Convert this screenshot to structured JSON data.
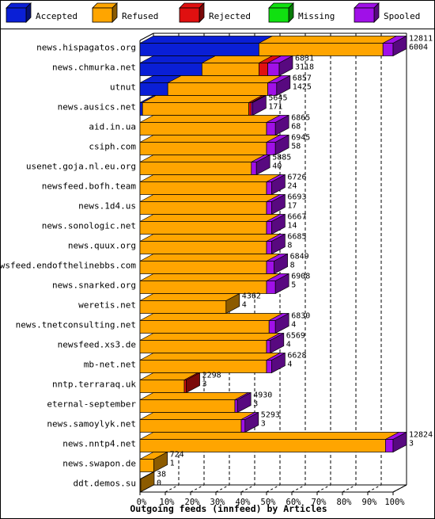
{
  "chart_data": {
    "type": "bar",
    "orientation": "horizontal",
    "stacked": true,
    "title": "Outgoing feeds (innfeed) by Articles",
    "xlabel": "Outgoing feeds (innfeed) by Articles",
    "ylabel": "",
    "xlim": [
      0,
      100
    ],
    "x_ticks": [
      "0%",
      "10%",
      "20%",
      "30%",
      "40%",
      "50%",
      "60%",
      "70%",
      "80%",
      "90%",
      "100%"
    ],
    "legend_position": "top",
    "series": [
      {
        "name": "Accepted",
        "color": "#0a1fd6"
      },
      {
        "name": "Refused",
        "color": "#ffa500"
      },
      {
        "name": "Rejected",
        "color": "#e01010"
      },
      {
        "name": "Missing",
        "color": "#10e010"
      },
      {
        "name": "Spooled",
        "color": "#a010e8"
      }
    ],
    "categories": [
      {
        "name": "news.hispagatos.org",
        "total": "12811",
        "second": "6004",
        "pct": [
          47,
          49,
          0,
          0,
          4
        ]
      },
      {
        "name": "news.chmurka.net",
        "total": "6831",
        "second": "3118",
        "pct": [
          24.5,
          22.5,
          3.5,
          0,
          4.5
        ]
      },
      {
        "name": "utnut",
        "total": "6857",
        "second": "1425",
        "pct": [
          11,
          39.5,
          0,
          0,
          3.5
        ]
      },
      {
        "name": "news.ausics.net",
        "total": "5645",
        "second": "171",
        "pct": [
          1,
          42,
          1,
          0,
          0.5
        ]
      },
      {
        "name": "aid.in.ua",
        "total": "6865",
        "second": "68",
        "pct": [
          0,
          50,
          0,
          0,
          3.5
        ]
      },
      {
        "name": "csiph.com",
        "total": "6945",
        "second": "58",
        "pct": [
          0,
          50,
          0,
          0,
          3.5
        ]
      },
      {
        "name": "usenet.goja.nl.eu.org",
        "total": "5885",
        "second": "40",
        "pct": [
          0,
          44,
          0,
          0,
          2
        ]
      },
      {
        "name": "newsfeed.bofh.team",
        "total": "6726",
        "second": "24",
        "pct": [
          0,
          50,
          0,
          0,
          2
        ]
      },
      {
        "name": "news.1d4.us",
        "total": "6693",
        "second": "17",
        "pct": [
          0,
          50,
          0,
          0,
          2
        ]
      },
      {
        "name": "news.sonologic.net",
        "total": "6667",
        "second": "14",
        "pct": [
          0,
          50,
          0,
          0,
          2
        ]
      },
      {
        "name": "news.quux.org",
        "total": "6685",
        "second": "8",
        "pct": [
          0,
          50,
          0,
          0,
          2
        ]
      },
      {
        "name": "newsfeed.endofthelinebbs.com",
        "total": "6849",
        "second": "8",
        "pct": [
          0,
          50,
          0,
          0,
          3
        ]
      },
      {
        "name": "news.snarked.org",
        "total": "6908",
        "second": "5",
        "pct": [
          0,
          50,
          0,
          0,
          3.5
        ]
      },
      {
        "name": "weretis.net",
        "total": "4362",
        "second": "4",
        "pct": [
          0,
          34,
          0,
          0,
          0
        ]
      },
      {
        "name": "news.tnetconsulting.net",
        "total": "6830",
        "second": "4",
        "pct": [
          0,
          51,
          0,
          0,
          2.5
        ]
      },
      {
        "name": "newsfeed.xs3.de",
        "total": "6569",
        "second": "4",
        "pct": [
          0,
          50,
          0,
          0,
          1.5
        ]
      },
      {
        "name": "mb-net.net",
        "total": "6628",
        "second": "4",
        "pct": [
          0,
          50,
          0,
          0,
          2
        ]
      },
      {
        "name": "nntp.terraraq.uk",
        "total": "2298",
        "second": "3",
        "pct": [
          0,
          17.5,
          0.8,
          0,
          0
        ]
      },
      {
        "name": "eternal-september",
        "total": "4930",
        "second": "3",
        "pct": [
          0,
          37.5,
          0,
          0,
          1
        ]
      },
      {
        "name": "news.samoylyk.net",
        "total": "5293",
        "second": "3",
        "pct": [
          0,
          40,
          0,
          0,
          1.5
        ]
      },
      {
        "name": "news.nntp4.net",
        "total": "12824",
        "second": "3",
        "pct": [
          0,
          97,
          0,
          0,
          3
        ]
      },
      {
        "name": "news.swapon.de",
        "total": "724",
        "second": "1",
        "pct": [
          0,
          5.5,
          0,
          0,
          0
        ]
      },
      {
        "name": "ddt.demos.su",
        "total": "38",
        "second": "0",
        "pct": [
          0,
          0.3,
          0,
          0,
          0
        ]
      }
    ]
  }
}
